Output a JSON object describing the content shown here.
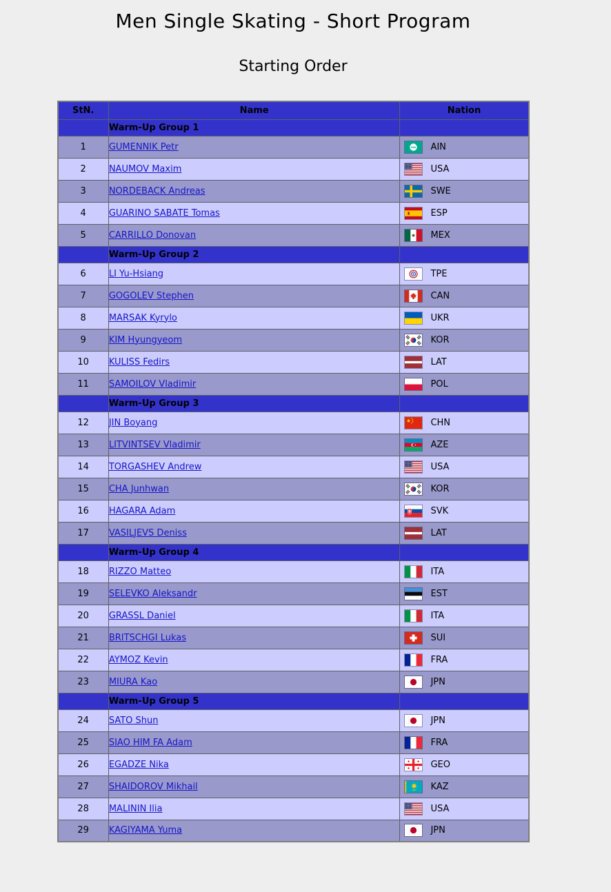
{
  "page": {
    "title": "Men Single Skating - Short Program",
    "subtitle": "Starting Order"
  },
  "colors": {
    "page_bg": "#eeeeee",
    "table_header_bg": "#3333cc",
    "row_dark_bg": "#9999cc",
    "row_light_bg": "#ccccff",
    "link_color": "#1616c8",
    "header_text": "#000000"
  },
  "table": {
    "columns": [
      "StN.",
      "Name",
      "Nation"
    ],
    "groups": [
      {
        "label": "Warm-Up Group 1",
        "skaters": [
          {
            "stn": 1,
            "name": "GUMENNIK Petr",
            "nation": "AIN",
            "flag_icon": "flag-ain-icon"
          },
          {
            "stn": 2,
            "name": "NAUMOV Maxim",
            "nation": "USA",
            "flag_icon": "flag-usa-icon"
          },
          {
            "stn": 3,
            "name": "NORDEBACK Andreas",
            "nation": "SWE",
            "flag_icon": "flag-swe-icon"
          },
          {
            "stn": 4,
            "name": "GUARINO SABATE Tomas",
            "nation": "ESP",
            "flag_icon": "flag-esp-icon"
          },
          {
            "stn": 5,
            "name": "CARRILLO Donovan",
            "nation": "MEX",
            "flag_icon": "flag-mex-icon"
          }
        ]
      },
      {
        "label": "Warm-Up Group 2",
        "skaters": [
          {
            "stn": 6,
            "name": "LI Yu-Hsiang",
            "nation": "TPE",
            "flag_icon": "flag-tpe-icon"
          },
          {
            "stn": 7,
            "name": "GOGOLEV Stephen",
            "nation": "CAN",
            "flag_icon": "flag-can-icon"
          },
          {
            "stn": 8,
            "name": "MARSAK Kyrylo",
            "nation": "UKR",
            "flag_icon": "flag-ukr-icon"
          },
          {
            "stn": 9,
            "name": "KIM Hyungyeom",
            "nation": "KOR",
            "flag_icon": "flag-kor-icon"
          },
          {
            "stn": 10,
            "name": "KULISS Fedirs",
            "nation": "LAT",
            "flag_icon": "flag-lat-icon"
          },
          {
            "stn": 11,
            "name": "SAMOILOV Vladimir",
            "nation": "POL",
            "flag_icon": "flag-pol-icon"
          }
        ]
      },
      {
        "label": "Warm-Up Group 3",
        "skaters": [
          {
            "stn": 12,
            "name": "JIN Boyang",
            "nation": "CHN",
            "flag_icon": "flag-chn-icon"
          },
          {
            "stn": 13,
            "name": "LITVINTSEV Vladimir",
            "nation": "AZE",
            "flag_icon": "flag-aze-icon"
          },
          {
            "stn": 14,
            "name": "TORGASHEV Andrew",
            "nation": "USA",
            "flag_icon": "flag-usa-icon"
          },
          {
            "stn": 15,
            "name": "CHA Junhwan",
            "nation": "KOR",
            "flag_icon": "flag-kor-icon"
          },
          {
            "stn": 16,
            "name": "HAGARA Adam",
            "nation": "SVK",
            "flag_icon": "flag-svk-icon"
          },
          {
            "stn": 17,
            "name": "VASILJEVS Deniss",
            "nation": "LAT",
            "flag_icon": "flag-lat-icon"
          }
        ]
      },
      {
        "label": "Warm-Up Group 4",
        "skaters": [
          {
            "stn": 18,
            "name": "RIZZO Matteo",
            "nation": "ITA",
            "flag_icon": "flag-ita-icon"
          },
          {
            "stn": 19,
            "name": "SELEVKO Aleksandr",
            "nation": "EST",
            "flag_icon": "flag-est-icon"
          },
          {
            "stn": 20,
            "name": "GRASSL Daniel",
            "nation": "ITA",
            "flag_icon": "flag-ita-icon"
          },
          {
            "stn": 21,
            "name": "BRITSCHGI Lukas",
            "nation": "SUI",
            "flag_icon": "flag-sui-icon"
          },
          {
            "stn": 22,
            "name": "AYMOZ Kevin",
            "nation": "FRA",
            "flag_icon": "flag-fra-icon"
          },
          {
            "stn": 23,
            "name": "MIURA Kao",
            "nation": "JPN",
            "flag_icon": "flag-jpn-icon"
          }
        ]
      },
      {
        "label": "Warm-Up Group 5",
        "skaters": [
          {
            "stn": 24,
            "name": "SATO Shun",
            "nation": "JPN",
            "flag_icon": "flag-jpn-icon"
          },
          {
            "stn": 25,
            "name": "SIAO HIM FA Adam",
            "nation": "FRA",
            "flag_icon": "flag-fra-icon"
          },
          {
            "stn": 26,
            "name": "EGADZE Nika",
            "nation": "GEO",
            "flag_icon": "flag-geo-icon"
          },
          {
            "stn": 27,
            "name": "SHAIDOROV Mikhail",
            "nation": "KAZ",
            "flag_icon": "flag-kaz-icon"
          },
          {
            "stn": 28,
            "name": "MALININ Ilia",
            "nation": "USA",
            "flag_icon": "flag-usa-icon"
          },
          {
            "stn": 29,
            "name": "KAGIYAMA Yuma",
            "nation": "JPN",
            "flag_icon": "flag-jpn-icon"
          }
        ]
      }
    ]
  }
}
